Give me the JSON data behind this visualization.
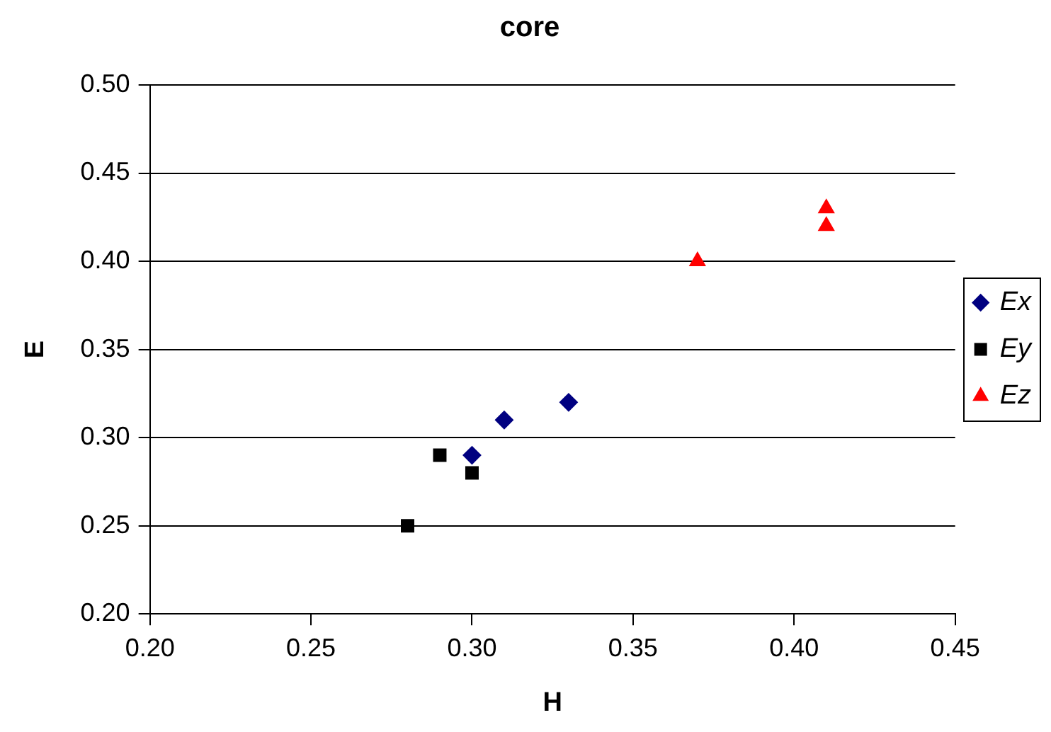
{
  "chart_data": {
    "type": "scatter",
    "title": "core",
    "xlabel": "H",
    "ylabel": "E",
    "series": [
      {
        "name": "Ex",
        "color": "#000080",
        "marker": "diamond",
        "x": [
          0.3,
          0.31,
          0.33
        ],
        "values": [
          0.29,
          0.31,
          0.32
        ]
      },
      {
        "name": "Ey",
        "color": "#000000",
        "marker": "square",
        "x": [
          0.28,
          0.29,
          0.3
        ],
        "values": [
          0.25,
          0.29,
          0.28
        ]
      },
      {
        "name": "Ez",
        "color": "#ff0000",
        "marker": "triangle",
        "x": [
          0.37,
          0.41,
          0.41
        ],
        "values": [
          0.4,
          0.43,
          0.42
        ]
      }
    ],
    "xlim": [
      0.2,
      0.45
    ],
    "xticks": [
      {
        "value": 0.2,
        "label": "0.20"
      },
      {
        "value": 0.25,
        "label": "0.25"
      },
      {
        "value": 0.3,
        "label": "0.30"
      },
      {
        "value": 0.35,
        "label": "0.35"
      },
      {
        "value": 0.4,
        "label": "0.40"
      },
      {
        "value": 0.45,
        "label": "0.45"
      }
    ],
    "ylim": [
      0.2,
      0.5
    ],
    "yticks": [
      {
        "value": 0.2,
        "label": "0.20"
      },
      {
        "value": 0.25,
        "label": "0.25"
      },
      {
        "value": 0.3,
        "label": "0.30"
      },
      {
        "value": 0.35,
        "label": "0.35"
      },
      {
        "value": 0.4,
        "label": "0.40"
      },
      {
        "value": 0.45,
        "label": "0.45"
      },
      {
        "value": 0.5,
        "label": "0.50"
      }
    ],
    "grid": "y",
    "legend": "right"
  }
}
